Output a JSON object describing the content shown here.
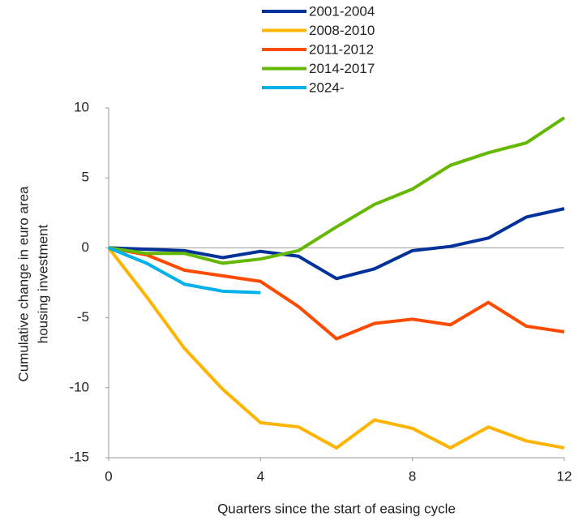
{
  "chart_data": {
    "type": "line",
    "xlabel": "Quarters since the start of easing cycle",
    "ylabel": [
      "Cumulative change in euro area",
      "housing investment"
    ],
    "x": [
      0,
      1,
      2,
      3,
      4,
      5,
      6,
      7,
      8,
      9,
      10,
      11,
      12
    ],
    "series": [
      {
        "name": "2001-2004",
        "color": "#003299",
        "values": [
          0,
          -0.1,
          -0.2,
          -0.7,
          -0.25,
          -0.6,
          -2.2,
          -1.5,
          -0.2,
          0.1,
          0.7,
          2.2,
          2.8
        ]
      },
      {
        "name": "2008-2010",
        "color": "#FFB400",
        "values": [
          0,
          -3.5,
          -7.2,
          -10.1,
          -12.5,
          -12.8,
          -14.3,
          -12.3,
          -12.9,
          -14.3,
          -12.8,
          -13.8,
          -14.3
        ]
      },
      {
        "name": "2011-2012",
        "color": "#FF4B00",
        "values": [
          0,
          -0.5,
          -1.6,
          -2.0,
          -2.4,
          -4.2,
          -6.5,
          -5.4,
          -5.1,
          -5.5,
          -3.9,
          -5.6,
          -6.0
        ]
      },
      {
        "name": "2014-2017",
        "color": "#65B800",
        "values": [
          0,
          -0.4,
          -0.4,
          -1.1,
          -0.8,
          -0.2,
          1.5,
          3.1,
          4.2,
          5.9,
          6.8,
          7.5,
          9.3
        ]
      },
      {
        "name": "2024-",
        "color": "#00B1EA",
        "values": [
          0,
          -1.1,
          -2.6,
          -3.1,
          -3.2,
          null,
          null,
          null,
          null,
          null,
          null,
          null,
          null
        ]
      }
    ],
    "xlim": [
      0,
      12
    ],
    "xticks": [
      0,
      4,
      8,
      12
    ],
    "ylim": [
      -15,
      10
    ],
    "yticks": [
      10,
      5,
      0,
      -5,
      -10,
      -15
    ],
    "grid": false
  }
}
